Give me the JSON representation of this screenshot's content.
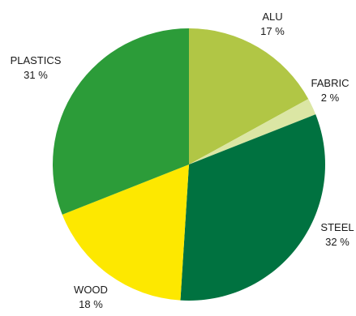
{
  "chart_data": {
    "type": "pie",
    "title": "",
    "legend": "none",
    "start_angle_deg": 0,
    "direction": "clockwise",
    "slices": [
      {
        "label": "ALU",
        "value": 17,
        "value_text": "17 %",
        "color": "#b1c645"
      },
      {
        "label": "FABRIC",
        "value": 2,
        "value_text": "2 %",
        "color": "#dbe6a4"
      },
      {
        "label": "STEEL",
        "value": 32,
        "value_text": "32 %",
        "color": "#007240"
      },
      {
        "label": "WOOD",
        "value": 18,
        "value_text": "18 %",
        "color": "#fde800"
      },
      {
        "label": "PLASTICS",
        "value": 31,
        "value_text": "31 %",
        "color": "#2c9c39"
      }
    ]
  }
}
